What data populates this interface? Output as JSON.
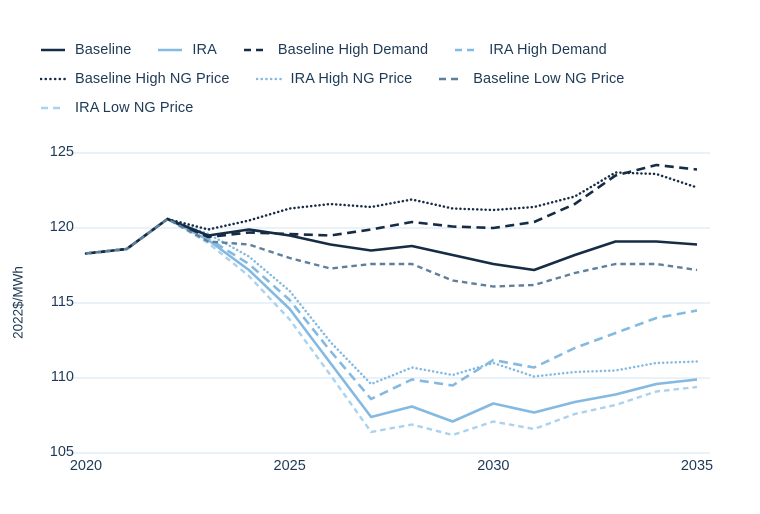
{
  "colors": {
    "text": "#1e3a56",
    "grid": "#dce9f4",
    "dark_navy": "#152c44",
    "light_blue": "#84b9e1",
    "slate_blue": "#5f7f9b",
    "pale_blue": "#a9d2ef"
  },
  "chart_data": {
    "type": "line",
    "title": "",
    "xlabel": "",
    "ylabel": "2022$/MWh",
    "xlim": [
      2020,
      2035
    ],
    "ylim": [
      105,
      125
    ],
    "xticks": [
      2020,
      2025,
      2030,
      2035
    ],
    "yticks": [
      105,
      110,
      115,
      120,
      125
    ],
    "grid": "horizontal-only",
    "legend_position": "top-left",
    "x": [
      2020,
      2021,
      2022,
      2023,
      2024,
      2025,
      2026,
      2027,
      2028,
      2029,
      2030,
      2031,
      2032,
      2033,
      2034,
      2035
    ],
    "series": [
      {
        "id": "baseline",
        "name": "Baseline",
        "color": "#152c44",
        "dash": "solid",
        "layer": 2,
        "values": [
          118.3,
          118.6,
          120.6,
          119.5,
          119.9,
          119.5,
          118.9,
          118.5,
          118.8,
          118.2,
          117.6,
          117.2,
          118.2,
          119.1,
          119.1,
          118.9
        ]
      },
      {
        "id": "ira",
        "name": "IRA",
        "color": "#84b9e1",
        "dash": "solid",
        "layer": 1,
        "values": [
          118.3,
          118.6,
          120.6,
          119.2,
          117.2,
          114.6,
          111.0,
          107.4,
          108.1,
          107.1,
          108.3,
          107.7,
          108.4,
          108.9,
          109.6,
          109.9
        ]
      },
      {
        "id": "baseline-high-demand",
        "name": "Baseline High Demand",
        "color": "#152c44",
        "dash": "dash",
        "layer": 2,
        "values": [
          118.3,
          118.6,
          120.6,
          119.4,
          119.7,
          119.6,
          119.5,
          119.9,
          120.4,
          120.1,
          120.0,
          120.4,
          121.6,
          123.5,
          124.2,
          123.9
        ]
      },
      {
        "id": "ira-high-demand",
        "name": "IRA High Demand",
        "color": "#84b9e1",
        "dash": "dash",
        "layer": 1,
        "values": [
          118.3,
          118.6,
          120.6,
          119.3,
          117.6,
          115.2,
          111.8,
          108.6,
          109.9,
          109.5,
          111.2,
          110.7,
          112.0,
          113.0,
          114.0,
          114.5
        ]
      },
      {
        "id": "baseline-high-ng-price",
        "name": "Baseline High NG Price",
        "color": "#152c44",
        "dash": "dot",
        "layer": 2,
        "values": [
          118.3,
          118.6,
          120.6,
          119.9,
          120.5,
          121.3,
          121.6,
          121.4,
          121.9,
          121.3,
          121.2,
          121.4,
          122.1,
          123.7,
          123.6,
          122.7
        ]
      },
      {
        "id": "ira-high-ng-price",
        "name": "IRA High NG Price",
        "color": "#84b9e1",
        "dash": "dot",
        "layer": 1,
        "values": [
          118.3,
          118.6,
          120.6,
          119.6,
          118.1,
          115.8,
          112.4,
          109.6,
          110.7,
          110.2,
          111.0,
          110.1,
          110.4,
          110.5,
          111.0,
          111.1
        ]
      },
      {
        "id": "baseline-low-ng-price",
        "name": "Baseline Low NG Price",
        "color": "#5f7f9b",
        "dash": "shortdash",
        "layer": 2,
        "values": [
          118.3,
          118.6,
          120.6,
          119.1,
          118.9,
          118.0,
          117.3,
          117.6,
          117.6,
          116.5,
          116.1,
          116.2,
          117.0,
          117.6,
          117.6,
          117.2
        ]
      },
      {
        "id": "ira-low-ng-price",
        "name": "IRA Low NG Price",
        "color": "#a9d2ef",
        "dash": "shortdash",
        "layer": 1,
        "values": [
          118.3,
          118.6,
          120.6,
          119.0,
          116.8,
          113.9,
          110.2,
          106.4,
          106.9,
          106.2,
          107.1,
          106.6,
          107.6,
          108.2,
          109.1,
          109.4
        ]
      }
    ]
  }
}
